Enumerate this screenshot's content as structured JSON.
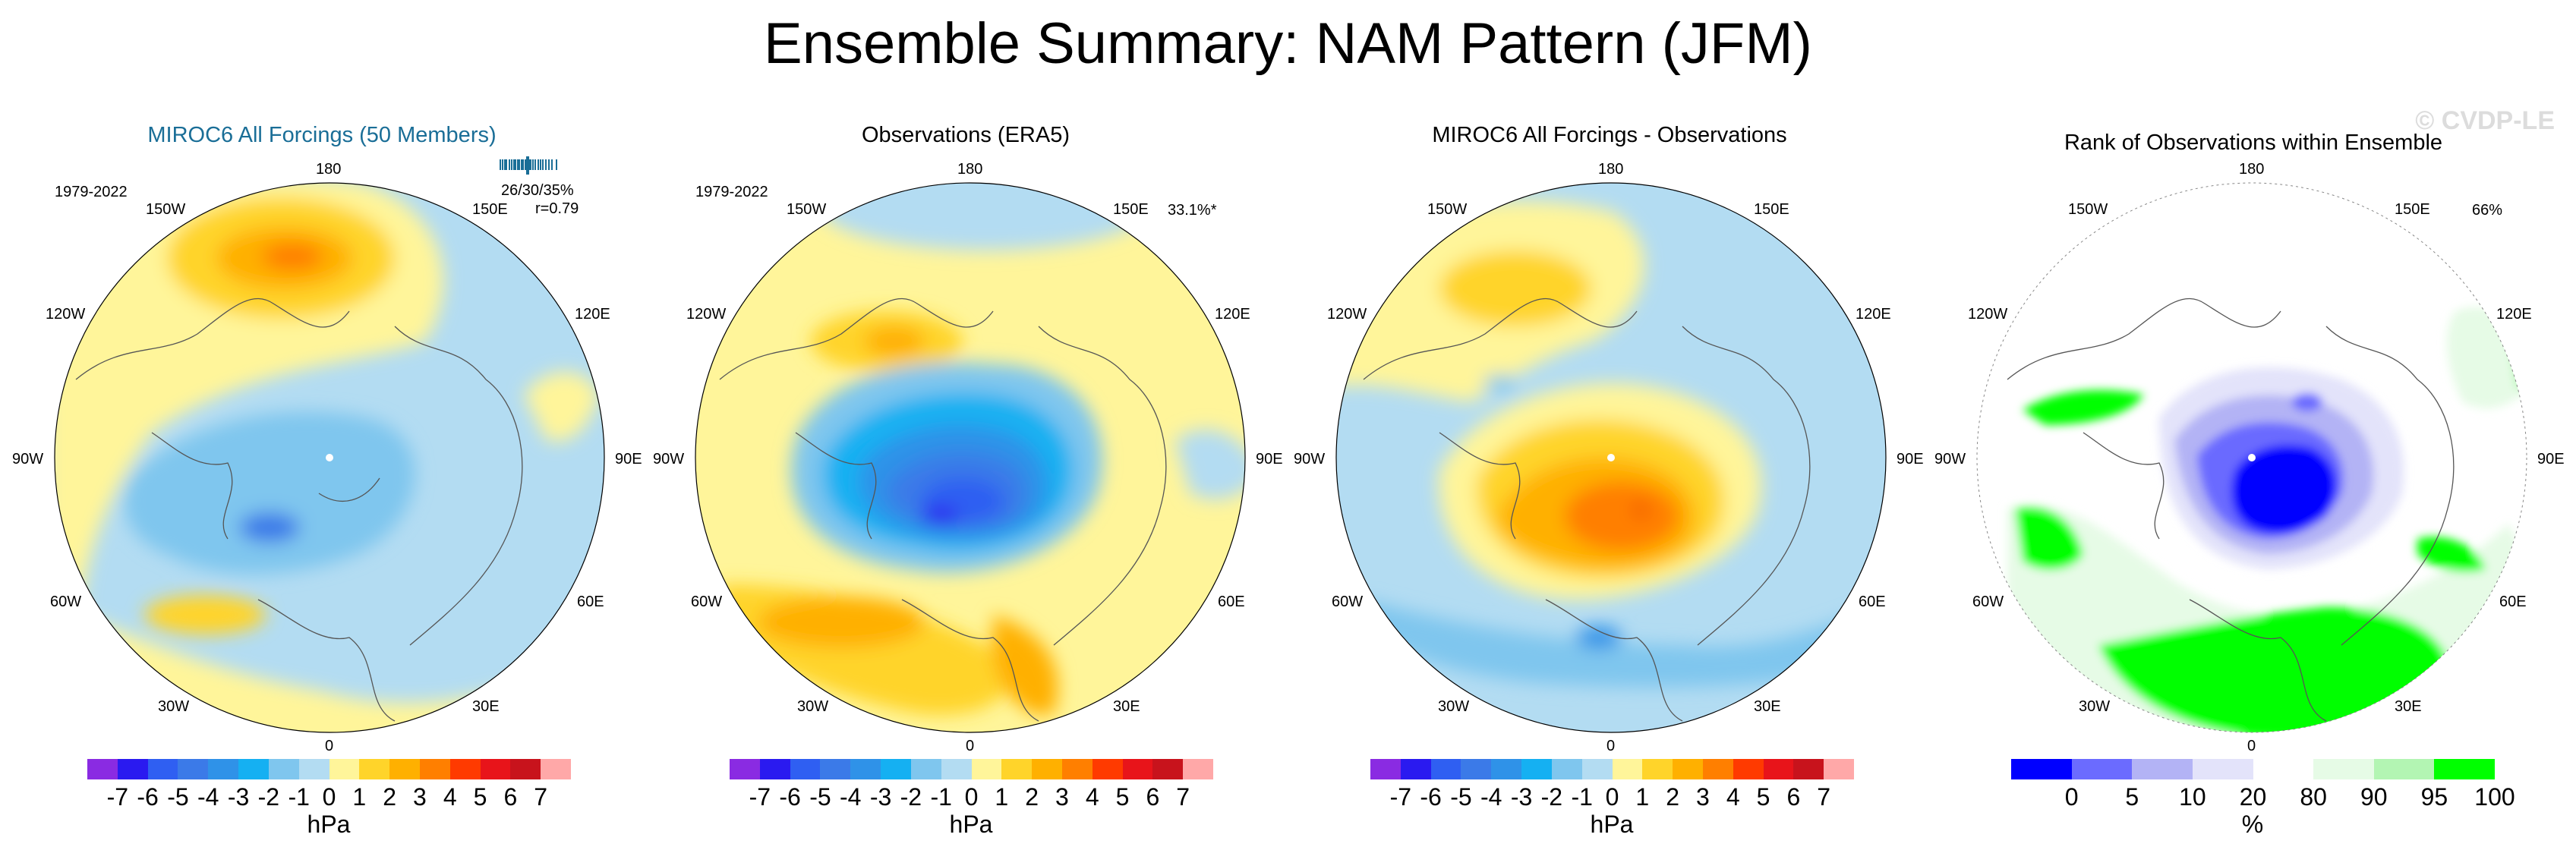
{
  "title": "Ensemble Summary: NAM Pattern (JFM)",
  "watermark": "© CVDP-LE",
  "lon_labels": {
    "n180": "180",
    "e150": "150E",
    "e120": "120E",
    "e90": "90E",
    "e60": "60E",
    "e30": "30E",
    "s0": "0",
    "w30": "30W",
    "w60": "60W",
    "w90": "90W",
    "w120": "120W",
    "w150": "150W"
  },
  "colors": {
    "background": "#ffffff",
    "title_blue": "#1a6e97",
    "ocean_light_blue": "#b3dcf2",
    "pale_yellow": "#fff59a"
  },
  "chart_data": [
    {
      "type": "heatmap",
      "title": "MIROC6 All Forcings (50 Members)",
      "period": "1979-2022",
      "stats_line1": "26/30/35%",
      "stats_line2": "r=0.79",
      "rank_marks": [
        2,
        5,
        8,
        10,
        14,
        17,
        20,
        22,
        25,
        27,
        30,
        32,
        35,
        37,
        40,
        42,
        45,
        48,
        52,
        55,
        58,
        62,
        66,
        70,
        76
      ],
      "rank_marker": 38,
      "colorbar": {
        "levels": [
          "-7",
          "-6",
          "-5",
          "-4",
          "-3",
          "-2",
          "-1",
          "0",
          "1",
          "2",
          "3",
          "4",
          "5",
          "6",
          "7"
        ],
        "label": "hPa",
        "colors": [
          "#8a2be2",
          "#2a1af0",
          "#2f5ff2",
          "#3b7ae8",
          "#2f92e8",
          "#15b0f2",
          "#7fc6ee",
          "#b3dcf2",
          "#fff59a",
          "#ffd42a",
          "#ffb000",
          "#ff7f00",
          "#ff3a00",
          "#e8141a",
          "#c8131c",
          "#ffa8a8"
        ]
      },
      "features": "Negative (-1 to -3 hPa) anomaly centered over the Arctic; positive (+1 to +3 hPa) over the North Pacific and weak positive over the North Atlantic"
    },
    {
      "type": "heatmap",
      "title": "Observations (ERA5)",
      "period": "1979-2022",
      "variance": "33.1%*",
      "colorbar": {
        "levels": [
          "-7",
          "-6",
          "-5",
          "-4",
          "-3",
          "-2",
          "-1",
          "0",
          "1",
          "2",
          "3",
          "4",
          "5",
          "6",
          "7"
        ],
        "label": "hPa",
        "colors": [
          "#8a2be2",
          "#2a1af0",
          "#2f5ff2",
          "#3b7ae8",
          "#2f92e8",
          "#15b0f2",
          "#7fc6ee",
          "#b3dcf2",
          "#fff59a",
          "#ffd42a",
          "#ffb000",
          "#ff7f00",
          "#ff3a00",
          "#e8141a",
          "#c8131c",
          "#ffa8a8"
        ]
      },
      "features": "Strong negative (-1 to -6 hPa) anomaly over the Arctic; positive (+1 to +3 hPa) over the North Atlantic and weak positive over the North Pacific"
    },
    {
      "type": "heatmap",
      "title": "MIROC6 All Forcings - Observations",
      "colorbar": {
        "levels": [
          "-7",
          "-6",
          "-5",
          "-4",
          "-3",
          "-2",
          "-1",
          "0",
          "1",
          "2",
          "3",
          "4",
          "5",
          "6",
          "7"
        ],
        "label": "hPa",
        "colors": [
          "#8a2be2",
          "#2a1af0",
          "#2f5ff2",
          "#3b7ae8",
          "#2f92e8",
          "#15b0f2",
          "#7fc6ee",
          "#b3dcf2",
          "#fff59a",
          "#ffd42a",
          "#ffb000",
          "#ff7f00",
          "#ff3a00",
          "#e8141a",
          "#c8131c",
          "#ffa8a8"
        ]
      },
      "features": "Positive (+1 to +5 hPa) difference over the Arctic; negative (-1 to -2 hPa) over the North Atlantic and mid-latitudes"
    },
    {
      "type": "heatmap",
      "title": "Rank of Observations within Ensemble",
      "variance": "66%",
      "colorbar": {
        "levels": [
          "0",
          "5",
          "10",
          "20",
          "80",
          "90",
          "95",
          "100"
        ],
        "label": "%",
        "colors": [
          "#0000ff",
          "#6b6bff",
          "#b3b3f5",
          "#e3e3fa",
          "#ffffff",
          "#e6fbe6",
          "#b3f5b3",
          "#00ff00"
        ]
      },
      "features": "Low rank (0-10%) over the Arctic; high rank (95-100%) over the North Atlantic and Europe"
    }
  ]
}
